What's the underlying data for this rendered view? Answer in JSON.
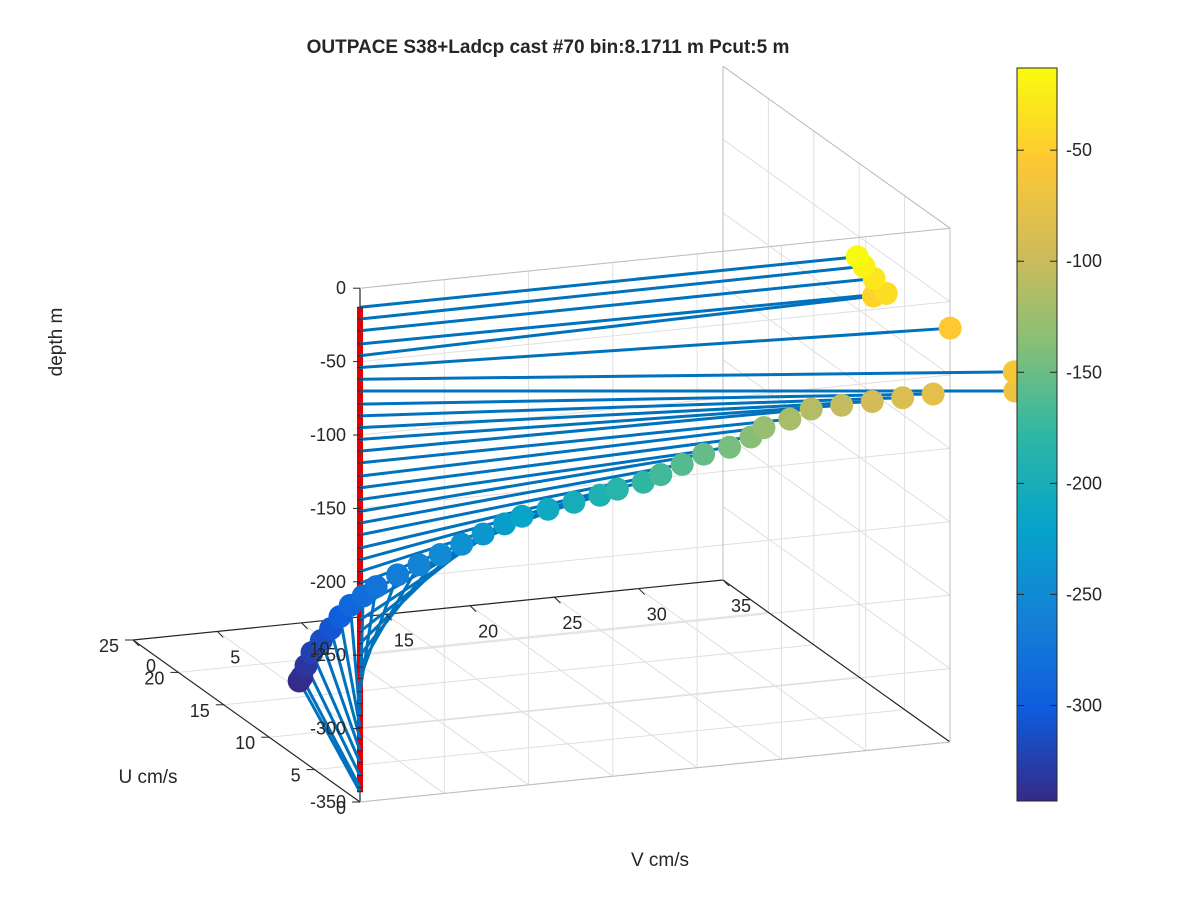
{
  "chart_data": {
    "type": "scatter",
    "title": "OUTPACE S38+Ladcp cast #70 bin:8.1711 m  Pcut:5 m",
    "xlabel": "V cm/s",
    "ylabel": "U cm/s",
    "zlabel": "depth m",
    "xlim": [
      0,
      35
    ],
    "ylim": [
      0,
      25
    ],
    "zlim": [
      -350,
      0
    ],
    "x_ticks": [
      "0",
      "5",
      "10",
      "15",
      "20",
      "25",
      "30",
      "35"
    ],
    "y_ticks": [
      "0",
      "5",
      "10",
      "15",
      "20",
      "25"
    ],
    "z_ticks": [
      "0",
      "-50",
      "-100",
      "-150",
      "-200",
      "-250",
      "-300",
      "-350"
    ],
    "colorbar": {
      "range": [
        -343,
        -13
      ],
      "ticks": [
        "-50",
        "-100",
        "-150",
        "-200",
        "-250",
        "-300"
      ],
      "tick_values": [
        -50,
        -100,
        -150,
        -200,
        -250,
        -300
      ],
      "colormap": "parula"
    },
    "grid": true,
    "line_color": "#0072BD",
    "axis_line_color": "#E00000",
    "points": [
      {
        "depth": -13,
        "u": 0.0,
        "v": 29.5
      },
      {
        "depth": -21,
        "u": 0.2,
        "v": 30.0
      },
      {
        "depth": -29,
        "u": 0.0,
        "v": 30.5
      },
      {
        "depth": -38,
        "u": -0.4,
        "v": 31.0
      },
      {
        "depth": -46,
        "u": 1.0,
        "v": 31.0
      },
      {
        "depth": -54,
        "u": -2.8,
        "v": 33.5
      },
      {
        "depth": -62,
        "u": -8.0,
        "v": 34.5
      },
      {
        "depth": -70,
        "u": -9.0,
        "v": 34.0
      },
      {
        "depth": -79,
        "u": -6.5,
        "v": 30.5
      },
      {
        "depth": -87,
        "u": -5.0,
        "v": 29.5
      },
      {
        "depth": -95,
        "u": -3.5,
        "v": 28.5
      },
      {
        "depth": -103,
        "u": -2.0,
        "v": 27.5
      },
      {
        "depth": -111,
        "u": -0.5,
        "v": 26.5
      },
      {
        "depth": -119,
        "u": 0.0,
        "v": 25.5
      },
      {
        "depth": -128,
        "u": 1.0,
        "v": 24.5
      },
      {
        "depth": -136,
        "u": 1.5,
        "v": 24.0
      },
      {
        "depth": -144,
        "u": 2.0,
        "v": 23.0
      },
      {
        "depth": -152,
        "u": 3.0,
        "v": 22.0
      },
      {
        "depth": -160,
        "u": 3.5,
        "v": 21.0
      },
      {
        "depth": -168,
        "u": 4.0,
        "v": 20.0
      },
      {
        "depth": -177,
        "u": 5.0,
        "v": 19.5
      },
      {
        "depth": -185,
        "u": 6.0,
        "v": 18.5
      },
      {
        "depth": -193,
        "u": 7.0,
        "v": 18.0
      },
      {
        "depth": -201,
        "u": 8.0,
        "v": 17.0
      },
      {
        "depth": -209,
        "u": 9.0,
        "v": 16.0
      },
      {
        "depth": -217,
        "u": 10.0,
        "v": 15.0
      },
      {
        "depth": -226,
        "u": 11.0,
        "v": 14.5
      },
      {
        "depth": -234,
        "u": 11.5,
        "v": 13.5
      },
      {
        "depth": -242,
        "u": 12.0,
        "v": 12.5
      },
      {
        "depth": -250,
        "u": 12.5,
        "v": 11.5
      },
      {
        "depth": -258,
        "u": 13.0,
        "v": 10.5
      },
      {
        "depth": -266,
        "u": 13.5,
        "v": 9.5
      },
      {
        "depth": -275,
        "u": 14.0,
        "v": 8.5
      },
      {
        "depth": -283,
        "u": 14.5,
        "v": 8.0
      },
      {
        "depth": -291,
        "u": 15.0,
        "v": 7.5
      },
      {
        "depth": -299,
        "u": 15.2,
        "v": 7.0
      },
      {
        "depth": -307,
        "u": 15.3,
        "v": 6.5
      },
      {
        "depth": -315,
        "u": 15.4,
        "v": 6.0
      },
      {
        "depth": -323,
        "u": 15.5,
        "v": 5.5
      },
      {
        "depth": -332,
        "u": 15.6,
        "v": 5.2
      },
      {
        "depth": -340,
        "u": 15.7,
        "v": 5.0
      },
      {
        "depth": -343,
        "u": 15.8,
        "v": 4.9
      }
    ]
  }
}
